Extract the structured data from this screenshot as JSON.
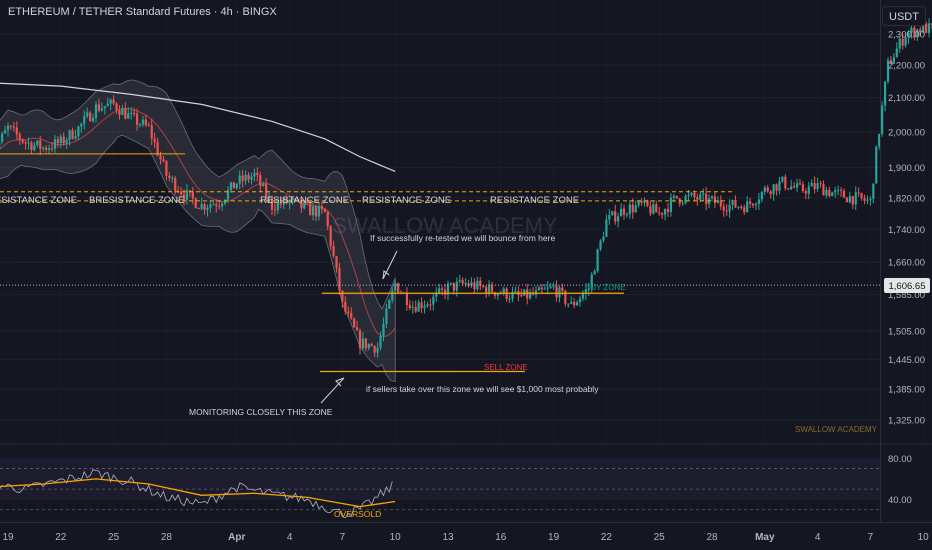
{
  "header": {
    "title": "ETHEREUM / TETHER Standard Futures · 4h · BINGX",
    "currency": "USDT"
  },
  "watermark": "SWALLOW ACADEMY",
  "credit": "SWALLOW ACADEMY",
  "price_axis": {
    "ticks": [
      "2,300.00",
      "2,200.00",
      "2,100.00",
      "2,000.00",
      "1,900.00",
      "1,820.00",
      "1,740.00",
      "1,660.00",
      "1,585.00",
      "1,505.00",
      "1,445.00",
      "1,385.00",
      "1,325.00"
    ],
    "current_price": "1,606.65"
  },
  "time_axis": {
    "ticks": [
      "19",
      "22",
      "25",
      "28",
      "Apr",
      "4",
      "7",
      "10",
      "13",
      "16",
      "19",
      "22",
      "25",
      "28",
      "May",
      "4",
      "7",
      "10"
    ]
  },
  "annotations": {
    "resistance_zone_1": "RESISTANCE ZONE",
    "resistance_zone_2": "BRESISTANCE ZONE",
    "resistance_zone_3": "RESISTANCE ZONE",
    "resistance_zone_4": "RESISTANCE ZONE",
    "resistance_zone_5": "RESISTANCE ZONE",
    "buy_zone": "BUY ZONE",
    "sell_zone": "SELL ZONE",
    "retest_note": "If successfully re-tested we will bounce from here",
    "sellers_note": "if sellers take over this zone we will see $1,000 most probably",
    "monitoring_note": "MONITORING CLOSELY THIS ZONE",
    "oversold": "OVERSOLD"
  },
  "rsi_axis": {
    "ticks": [
      "80.00",
      "40.00"
    ]
  },
  "colors": {
    "up": "#26a69a",
    "down": "#ef5350",
    "resistance": "#f7a600",
    "sell_zone": "#f23645",
    "buy_zone": "#089981",
    "rsi": "#b2b5be",
    "rsi_ma": "#f7a600",
    "long_ma": "#d1d4dc"
  },
  "chart_data": {
    "type": "candlestick",
    "title": "ETHEREUM / TETHER Standard Futures · 4h · BINGX",
    "y_scale": "log",
    "ylim": [
      1300,
      2360
    ],
    "date_range": [
      "2025-03-18",
      "2025-05-11"
    ],
    "x_ticks": [
      "19",
      "22",
      "25",
      "28",
      "Apr",
      "4",
      "7",
      "10",
      "13",
      "16",
      "19",
      "22",
      "25",
      "28",
      "May",
      "4",
      "7",
      "10"
    ],
    "y_ticks": [
      2300,
      2200,
      2100,
      2000,
      1900,
      1820,
      1740,
      1660,
      1585,
      1505,
      1445,
      1385,
      1325
    ],
    "current_price": 1606.65,
    "close_path": [
      [
        "2025-03-18",
        1930
      ],
      [
        "2025-03-19",
        2010
      ],
      [
        "2025-03-20",
        1970
      ],
      [
        "2025-03-21",
        1955
      ],
      [
        "2025-03-22",
        1970
      ],
      [
        "2025-03-23",
        2010
      ],
      [
        "2025-03-24",
        2070
      ],
      [
        "2025-03-25",
        2080
      ],
      [
        "2025-03-26",
        2040
      ],
      [
        "2025-03-27",
        2010
      ],
      [
        "2025-03-28",
        1880
      ],
      [
        "2025-03-29",
        1830
      ],
      [
        "2025-03-30",
        1800
      ],
      [
        "2025-03-31",
        1810
      ],
      [
        "2025-04-01",
        1860
      ],
      [
        "2025-04-02",
        1880
      ],
      [
        "2025-04-03",
        1800
      ],
      [
        "2025-04-04",
        1810
      ],
      [
        "2025-04-05",
        1790
      ],
      [
        "2025-04-06",
        1780
      ],
      [
        "2025-04-07",
        1560
      ],
      [
        "2025-04-08",
        1480
      ],
      [
        "2025-04-09",
        1470
      ],
      [
        "2025-04-10",
        1610
      ],
      [
        "2025-04-11",
        1560
      ],
      [
        "2025-04-12",
        1570
      ],
      [
        "2025-04-13",
        1600
      ],
      [
        "2025-04-14",
        1610
      ],
      [
        "2025-04-15",
        1600
      ],
      [
        "2025-04-16",
        1590
      ],
      [
        "2025-04-17",
        1580
      ],
      [
        "2025-04-18",
        1585
      ],
      [
        "2025-04-19",
        1600
      ],
      [
        "2025-04-20",
        1560
      ],
      [
        "2025-04-21",
        1600
      ],
      [
        "2025-04-22",
        1760
      ],
      [
        "2025-04-23",
        1790
      ],
      [
        "2025-04-24",
        1800
      ],
      [
        "2025-04-25",
        1780
      ],
      [
        "2025-04-26",
        1820
      ],
      [
        "2025-04-27",
        1820
      ],
      [
        "2025-04-28",
        1810
      ],
      [
        "2025-04-29",
        1800
      ],
      [
        "2025-04-30",
        1800
      ],
      [
        "2025-05-01",
        1840
      ],
      [
        "2025-05-02",
        1860
      ],
      [
        "2025-05-03",
        1840
      ],
      [
        "2025-05-04",
        1850
      ],
      [
        "2025-05-05",
        1830
      ],
      [
        "2025-05-06",
        1820
      ],
      [
        "2025-05-07",
        1810
      ],
      [
        "2025-05-08",
        2200
      ],
      [
        "2025-05-09",
        2300
      ],
      [
        "2025-05-10",
        2320
      ],
      [
        "2025-05-11",
        2310
      ]
    ],
    "long_ma_path": [
      [
        "2025-03-18",
        2145
      ],
      [
        "2025-03-22",
        2135
      ],
      [
        "2025-03-26",
        2110
      ],
      [
        "2025-03-30",
        2080
      ],
      [
        "2025-04-03",
        2030
      ],
      [
        "2025-04-06",
        1980
      ],
      [
        "2025-04-08",
        1930
      ],
      [
        "2025-04-10",
        1890
      ]
    ],
    "levels": [
      {
        "label": "RESISTANCE ZONE",
        "price": 1836,
        "style": "dashed"
      },
      {
        "label": "RESISTANCE ZONE",
        "price": 1812,
        "style": "dashed"
      },
      {
        "label": "BUY ZONE",
        "price": 1588
      },
      {
        "label": "SELL ZONE",
        "price": 1420
      }
    ],
    "rsi": {
      "ylim": [
        20,
        90
      ],
      "ticks": [
        80,
        40
      ],
      "levels": [
        70,
        50,
        30
      ],
      "path": [
        [
          "2025-03-18",
          55
        ],
        [
          "2025-03-20",
          50
        ],
        [
          "2025-03-22",
          58
        ],
        [
          "2025-03-24",
          66
        ],
        [
          "2025-03-26",
          57
        ],
        [
          "2025-03-28",
          42
        ],
        [
          "2025-03-30",
          35
        ],
        [
          "2025-04-01",
          52
        ],
        [
          "2025-04-03",
          45
        ],
        [
          "2025-04-05",
          40
        ],
        [
          "2025-04-07",
          26
        ],
        [
          "2025-04-08",
          30
        ],
        [
          "2025-04-09",
          42
        ],
        [
          "2025-04-10",
          55
        ]
      ],
      "ma_path": [
        [
          "2025-03-18",
          52
        ],
        [
          "2025-03-21",
          55
        ],
        [
          "2025-03-24",
          60
        ],
        [
          "2025-03-27",
          55
        ],
        [
          "2025-03-30",
          44
        ],
        [
          "2025-04-02",
          46
        ],
        [
          "2025-04-05",
          42
        ],
        [
          "2025-04-08",
          33
        ],
        [
          "2025-04-10",
          38
        ]
      ]
    }
  }
}
